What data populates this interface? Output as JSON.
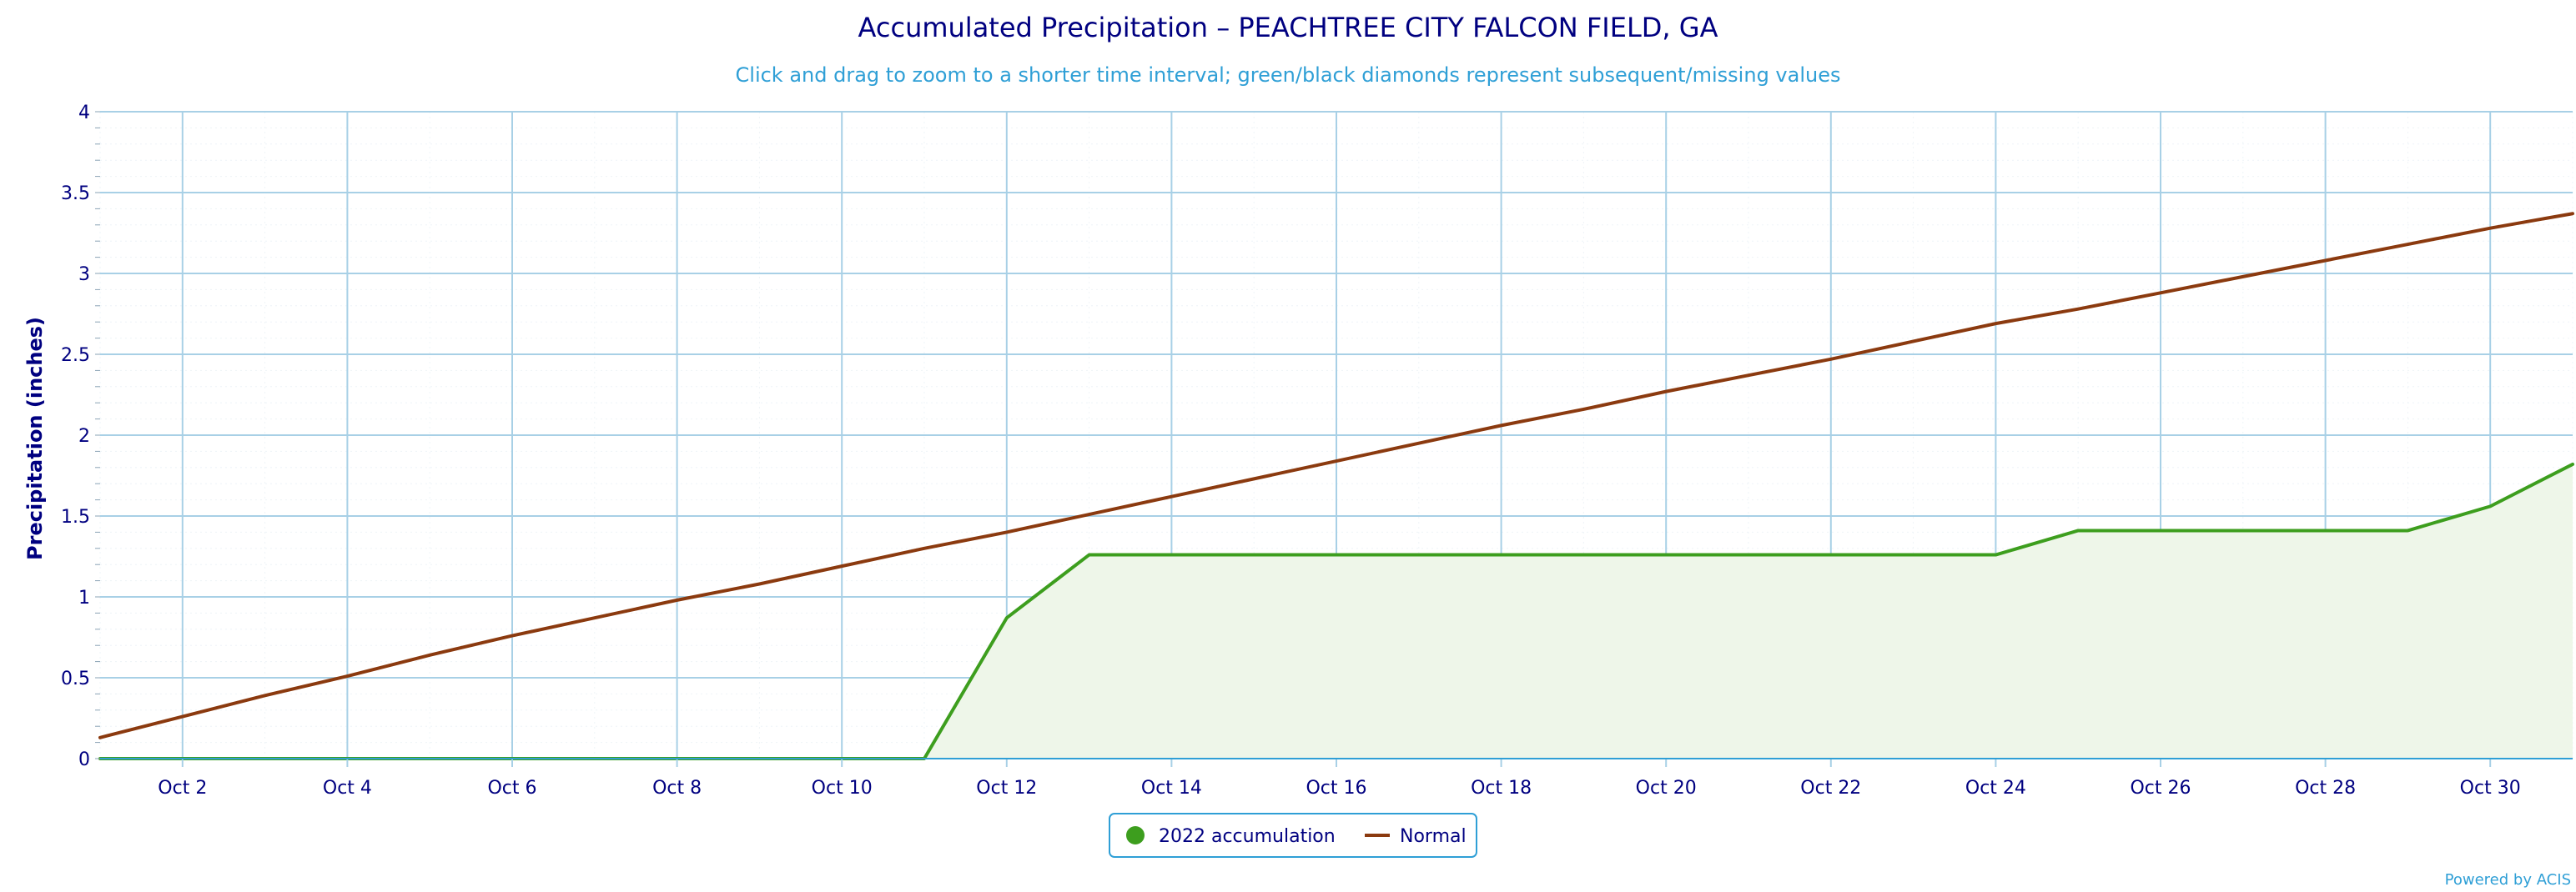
{
  "chart_data": {
    "type": "line",
    "title": "Accumulated Precipitation – PEACHTREE CITY FALCON FIELD, GA",
    "subtitle": "Click and drag to zoom to a shorter time interval; green/black diamonds represent subsequent/missing values",
    "ylabel": "Precipitation (inches)",
    "xlabel": "",
    "ylim": [
      0,
      4
    ],
    "xlim": [
      1,
      31
    ],
    "yticks": [
      "0",
      "0.5",
      "1",
      "1.5",
      "2",
      "2.5",
      "3",
      "3.5",
      "4"
    ],
    "xticks": [
      {
        "day": 2,
        "label": "Oct 2"
      },
      {
        "day": 4,
        "label": "Oct 4"
      },
      {
        "day": 6,
        "label": "Oct 6"
      },
      {
        "day": 8,
        "label": "Oct 8"
      },
      {
        "day": 10,
        "label": "Oct 10"
      },
      {
        "day": 12,
        "label": "Oct 12"
      },
      {
        "day": 14,
        "label": "Oct 14"
      },
      {
        "day": 16,
        "label": "Oct 16"
      },
      {
        "day": 18,
        "label": "Oct 18"
      },
      {
        "day": 20,
        "label": "Oct 20"
      },
      {
        "day": 22,
        "label": "Oct 22"
      },
      {
        "day": 24,
        "label": "Oct 24"
      },
      {
        "day": 26,
        "label": "Oct 26"
      },
      {
        "day": 28,
        "label": "Oct 28"
      },
      {
        "day": 30,
        "label": "Oct 30"
      }
    ],
    "grid": true,
    "legend_position": "bottom-center",
    "series": [
      {
        "name": "2022 accumulation",
        "color": "#3d9e1e",
        "fill": "#eef6e9",
        "x": [
          1,
          2,
          3,
          4,
          5,
          6,
          7,
          8,
          9,
          10,
          11,
          12,
          13,
          14,
          15,
          16,
          17,
          18,
          19,
          20,
          21,
          22,
          23,
          24,
          25,
          26,
          27,
          28,
          29,
          30,
          31
        ],
        "values": [
          0,
          0,
          0,
          0,
          0,
          0,
          0,
          0,
          0,
          0,
          0,
          0.87,
          1.26,
          1.26,
          1.26,
          1.26,
          1.26,
          1.26,
          1.26,
          1.26,
          1.26,
          1.26,
          1.26,
          1.26,
          1.41,
          1.41,
          1.41,
          1.41,
          1.41,
          1.56,
          1.82
        ]
      },
      {
        "name": "Normal",
        "color": "#8b3a0f",
        "x": [
          1,
          2,
          3,
          4,
          5,
          6,
          7,
          8,
          9,
          10,
          11,
          12,
          13,
          14,
          15,
          16,
          17,
          18,
          19,
          20,
          21,
          22,
          23,
          24,
          25,
          26,
          27,
          28,
          29,
          30,
          31
        ],
        "values": [
          0.13,
          0.26,
          0.39,
          0.51,
          0.64,
          0.76,
          0.87,
          0.98,
          1.08,
          1.19,
          1.3,
          1.4,
          1.51,
          1.62,
          1.73,
          1.84,
          1.95,
          2.06,
          2.16,
          2.27,
          2.37,
          2.47,
          2.58,
          2.69,
          2.78,
          2.88,
          2.98,
          3.08,
          3.18,
          3.28,
          3.37
        ]
      }
    ]
  },
  "credit": "Powered by ACIS"
}
